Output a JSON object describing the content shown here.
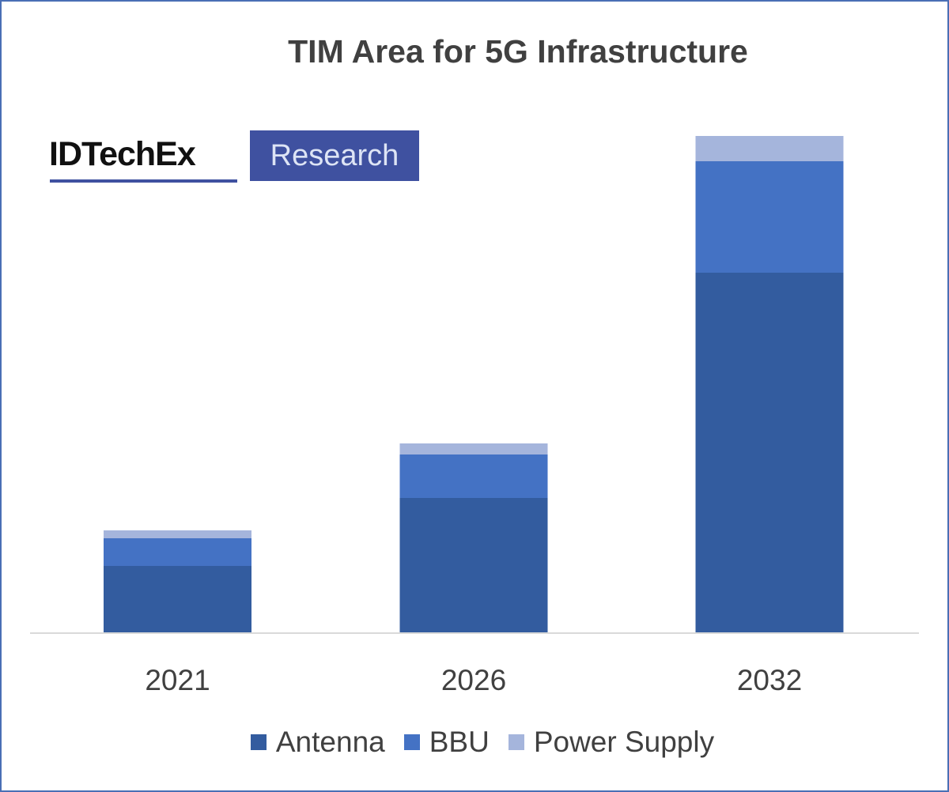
{
  "chart_data": {
    "type": "bar",
    "stacked": true,
    "title": "TIM Area for 5G Infrastructure",
    "xlabel": "",
    "ylabel": "",
    "categories": [
      "2021",
      "2026",
      "2032"
    ],
    "series": [
      {
        "name": "Antenna",
        "color": "#335c9f",
        "values": [
          85,
          171,
          456
        ]
      },
      {
        "name": "BBU",
        "color": "#4472c4",
        "values": [
          35,
          55,
          141
        ]
      },
      {
        "name": "Power Supply",
        "color": "#a5b5dc",
        "values": [
          10,
          14,
          32
        ]
      }
    ],
    "ylim": [
      0,
      640
    ],
    "y_axis_shown": false,
    "grid": false,
    "legend_position": "bottom"
  },
  "logo": {
    "brand": "IDTechEx",
    "tag": "Research"
  },
  "frame_color": "#4a6fb5"
}
